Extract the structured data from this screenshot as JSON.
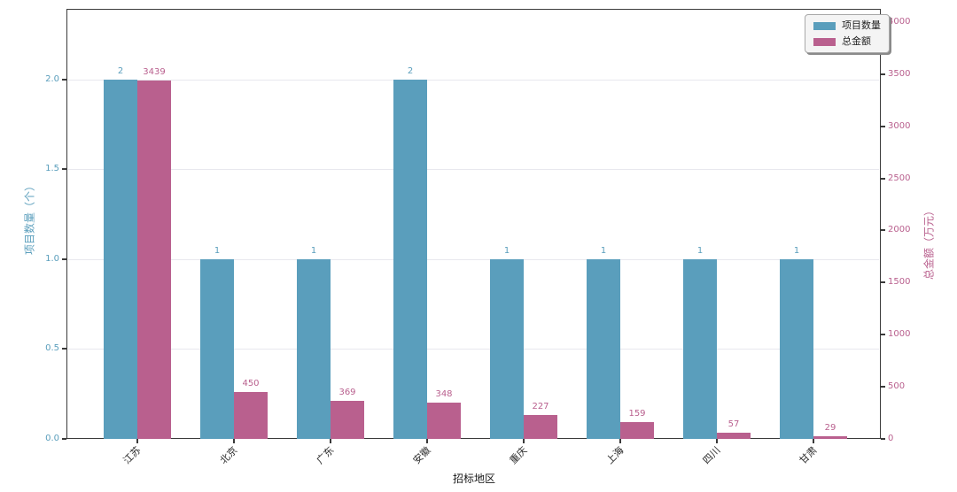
{
  "chart_data": {
    "type": "bar",
    "title": "",
    "xlabel": "招标地区",
    "ylabel_left": "项目数量（个）",
    "ylabel_right": "总金额（万元）",
    "categories": [
      "江苏",
      "北京",
      "广东",
      "安徽",
      "重庆",
      "上海",
      "四川",
      "甘肃"
    ],
    "series": [
      {
        "name": "项目数量",
        "axis": "left",
        "color": "#5A9EBC",
        "values": [
          2,
          1,
          1,
          2,
          1,
          1,
          1,
          1
        ]
      },
      {
        "name": "总金额",
        "axis": "right",
        "color": "#B9608E",
        "values": [
          3439,
          450,
          369,
          348,
          227,
          159,
          57,
          29
        ]
      }
    ],
    "left_axis": {
      "tick_labels": [
        "0.0",
        "0.5",
        "1.0",
        "1.5",
        "2.0"
      ],
      "tick_values": [
        0,
        0.5,
        1,
        1.5,
        2
      ],
      "ylim": [
        0,
        2.394
      ]
    },
    "right_axis": {
      "tick_labels": [
        "0",
        "500",
        "1000",
        "1500",
        "2000",
        "2500",
        "3000",
        "3500",
        "4000"
      ],
      "tick_values": [
        0,
        500,
        1000,
        1500,
        2000,
        2500,
        3000,
        3500,
        4000
      ],
      "ylim": [
        0,
        4127
      ]
    },
    "grid": "horizontal-left-ticks-only",
    "legend_position": "top-right",
    "legend": [
      {
        "label": "项目数量",
        "color": "#5A9EBC"
      },
      {
        "label": "总金额",
        "color": "#B9608E"
      }
    ]
  },
  "colors": {
    "bar_blue": "#5A9EBC",
    "bar_pink": "#B9608E",
    "spine": "#3a3a3a",
    "gridline": "#e8e8ee",
    "x_tick_text": "#2b2b2b",
    "background": "#ffffff"
  }
}
